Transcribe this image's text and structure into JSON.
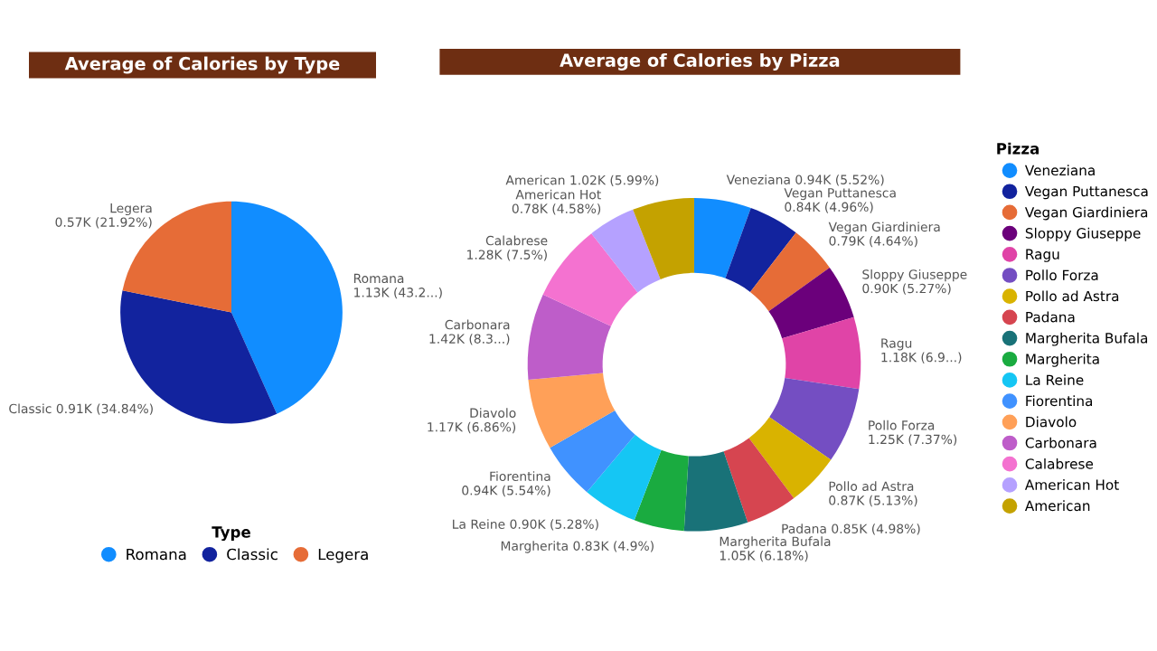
{
  "chart_data": [
    {
      "type": "pie",
      "title": "Average of Calories by Type",
      "legend_title": "Type",
      "legend": "bottom",
      "categories": [
        "Romana",
        "Classic",
        "Legera"
      ],
      "values": [
        1130,
        910,
        570
      ],
      "colors": [
        "#118dff",
        "#12239e",
        "#e66c37"
      ],
      "value_labels": [
        "Romana\n1.13K (43.2...)",
        "Classic 0.91K (34.84%)",
        "Legera\n0.57K (21.92%)"
      ]
    },
    {
      "type": "donut",
      "title": "Average of Calories by Pizza",
      "legend_title": "Pizza",
      "legend": "right",
      "categories": [
        "Veneziana",
        "Vegan Puttanesca",
        "Vegan Giardiniera",
        "Sloppy Giuseppe",
        "Ragu",
        "Pollo Forza",
        "Pollo ad Astra",
        "Padana",
        "Margherita Bufala",
        "Margherita",
        "La Reine",
        "Fiorentina",
        "Diavolo",
        "Carbonara",
        "Calabrese",
        "American Hot",
        "American"
      ],
      "values": [
        940,
        840,
        790,
        900,
        1180,
        1250,
        870,
        850,
        1050,
        830,
        900,
        940,
        1170,
        1420,
        1280,
        780,
        1020
      ],
      "colors": [
        "#118dff",
        "#12239e",
        "#e66c37",
        "#6b007b",
        "#e044a7",
        "#744ec2",
        "#d9b300",
        "#d64550",
        "#197278",
        "#1aab40",
        "#15c6f4",
        "#4092ff",
        "#ffa058",
        "#be5dc9",
        "#f472d0",
        "#b5a1ff",
        "#c4a200"
      ],
      "value_labels": [
        "Veneziana 0.94K (5.52%)",
        "Vegan Puttanesca\n0.84K (4.96%)",
        "Vegan Giardiniera\n0.79K (4.64%)",
        "Sloppy Giuseppe\n0.90K (5.27%)",
        "Ragu\n1.18K (6.9...)",
        "Pollo Forza\n1.25K (7.37%)",
        "Pollo ad Astra\n0.87K (5.13%)",
        "Padana 0.85K (4.98%)",
        "Margherita Bufala\n1.05K (6.18%)",
        "Margherita 0.83K (4.9%)",
        "La Reine 0.90K (5.28%)",
        "Fiorentina\n0.94K (5.54%)",
        "Diavolo\n1.17K (6.86%)",
        "Carbonara\n1.42K (8.3...)",
        "Calabrese\n1.28K (7.5%)",
        "American Hot\n0.78K (4.58%)",
        "American 1.02K (5.99%)"
      ]
    }
  ]
}
